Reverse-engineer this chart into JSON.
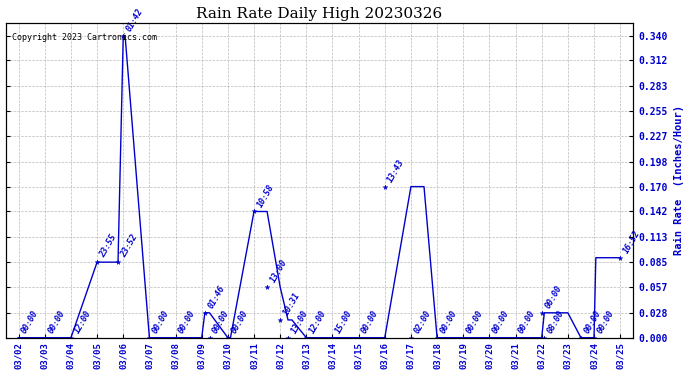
{
  "title": "Rain Rate Daily High 20230326",
  "copyright_text": "Copyright 2023 Cartronics.com",
  "ylabel_right": "Rain Rate  (Inches/Hour)",
  "ylim": [
    0.0,
    0.354
  ],
  "yticks": [
    0.0,
    0.028,
    0.057,
    0.085,
    0.113,
    0.142,
    0.17,
    0.198,
    0.227,
    0.255,
    0.283,
    0.312,
    0.34
  ],
  "x_dates": [
    "03/02",
    "03/03",
    "03/04",
    "03/05",
    "03/06",
    "03/07",
    "03/08",
    "03/09",
    "03/10",
    "03/11",
    "03/12",
    "03/13",
    "03/14",
    "03/15",
    "03/16",
    "03/17",
    "03/18",
    "03/19",
    "03/20",
    "03/21",
    "03/22",
    "03/23",
    "03/24",
    "03/25"
  ],
  "xs_line": [
    0,
    1,
    2,
    3,
    3.8,
    4,
    4.07,
    5,
    6,
    7,
    7.12,
    7.3,
    8,
    8.1,
    9,
    9.5,
    10,
    10.3,
    10.45,
    11,
    12,
    13,
    14,
    15,
    15.5,
    16,
    17,
    18,
    19,
    20,
    20.1,
    21,
    21.5,
    22,
    22.07,
    23
  ],
  "ys_line": [
    0,
    0,
    0,
    0.085,
    0.085,
    0.34,
    0.34,
    0,
    0,
    0,
    0.028,
    0.028,
    0,
    0,
    0.142,
    0.142,
    0.057,
    0.02,
    0.02,
    0,
    0,
    0,
    0,
    0.17,
    0.17,
    0,
    0,
    0,
    0,
    0,
    0.028,
    0.028,
    0,
    0,
    0.09,
    0.09
  ],
  "annotations": [
    [
      0,
      0.0,
      "00:00"
    ],
    [
      1,
      0.0,
      "00:00"
    ],
    [
      2,
      0.0,
      "12:00"
    ],
    [
      3,
      0.085,
      "23:55"
    ],
    [
      3.8,
      0.085,
      "23:52"
    ],
    [
      4,
      0.34,
      "01:42"
    ],
    [
      5,
      0.0,
      "00:00"
    ],
    [
      6,
      0.0,
      "00:00"
    ],
    [
      7.12,
      0.028,
      "01:46"
    ],
    [
      7.3,
      0.0,
      "00:00"
    ],
    [
      8,
      0.0,
      "00:00"
    ],
    [
      9,
      0.142,
      "10:58"
    ],
    [
      9.5,
      0.057,
      "13:00"
    ],
    [
      10,
      0.02,
      "10:31"
    ],
    [
      10.3,
      0.0,
      "13:00"
    ],
    [
      11,
      0.0,
      "12:00"
    ],
    [
      12,
      0.0,
      "15:00"
    ],
    [
      13,
      0.0,
      "00:00"
    ],
    [
      14,
      0.17,
      "13:43"
    ],
    [
      15,
      0.0,
      "02:00"
    ],
    [
      16,
      0.0,
      "00:00"
    ],
    [
      17,
      0.0,
      "00:00"
    ],
    [
      18,
      0.0,
      "00:00"
    ],
    [
      19,
      0.0,
      "00:00"
    ],
    [
      20,
      0.028,
      "00:00"
    ],
    [
      20.1,
      0.0,
      "08:00"
    ],
    [
      21.5,
      0.0,
      "00:00"
    ],
    [
      22,
      0.0,
      "00:00"
    ],
    [
      23,
      0.09,
      "16:52"
    ]
  ],
  "line_color": "#0000CC",
  "bg_color": "#ffffff",
  "grid_color": "#aaaaaa",
  "title_color": "#000000",
  "label_color": "#0000CC",
  "copyright_color": "#000000",
  "ylabel_color": "#0000CC"
}
